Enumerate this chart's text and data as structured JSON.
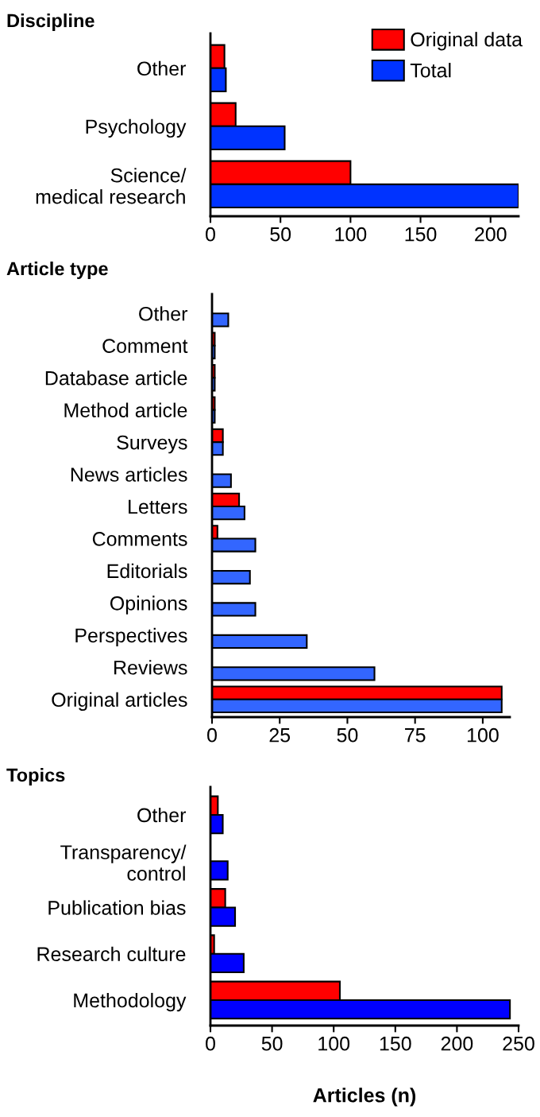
{
  "chart_data": [
    {
      "type": "bar",
      "orientation": "horizontal",
      "title": "Discipline",
      "categories": [
        "Other",
        "Psychology",
        "Science/\nmedical research"
      ],
      "series": [
        {
          "name": "Original data",
          "color": "#ff0000",
          "values": [
            10,
            18,
            100
          ]
        },
        {
          "name": "Total",
          "color": "#0033ff",
          "values": [
            11,
            53,
            220
          ]
        }
      ],
      "xlim": [
        0,
        220
      ],
      "xticks": [
        0,
        50,
        100,
        150,
        200
      ],
      "legend": "top right",
      "grid": false
    },
    {
      "type": "bar",
      "orientation": "horizontal",
      "title": "Article type",
      "categories": [
        "Other",
        "Comment",
        "Database article",
        "Method article",
        "Surveys",
        "News articles",
        "Letters",
        "Comments",
        "Editorials",
        "Opinions",
        "Perspectives",
        "Reviews",
        "Original articles"
      ],
      "series": [
        {
          "color": "#ff0000",
          "values": [
            null,
            1,
            1,
            1,
            4,
            null,
            10,
            2,
            null,
            null,
            null,
            null,
            107
          ]
        },
        {
          "color": "#3366ff",
          "values": [
            6,
            1,
            1,
            1,
            4,
            7,
            12,
            16,
            14,
            16,
            35,
            60,
            107
          ]
        }
      ],
      "xlim": [
        0,
        110
      ],
      "xticks": [
        0,
        25,
        50,
        75,
        100
      ],
      "grid": false
    },
    {
      "type": "bar",
      "orientation": "horizontal",
      "title": "Topics",
      "xlabel": "Articles (n)",
      "categories": [
        "Other",
        "Transparency/\ncontrol",
        "Publication bias",
        "Research culture",
        "Methodology"
      ],
      "series": [
        {
          "color": "#ff0000",
          "values": [
            6,
            null,
            12,
            3,
            105
          ]
        },
        {
          "color": "#0000ff",
          "values": [
            10,
            14,
            20,
            27,
            243
          ]
        }
      ],
      "xlim": [
        0,
        250
      ],
      "xticks": [
        0,
        50,
        100,
        150,
        200,
        250
      ],
      "grid": false
    }
  ]
}
